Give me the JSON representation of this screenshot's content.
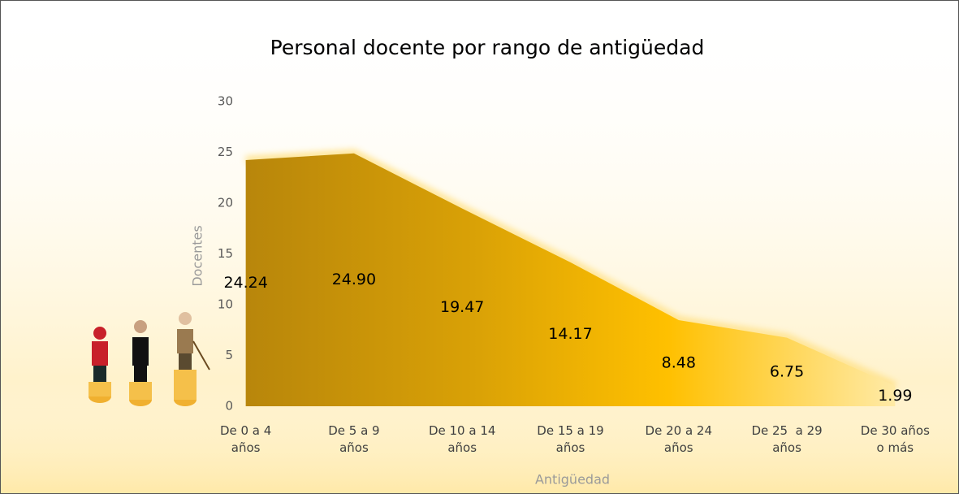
{
  "chart_data": {
    "type": "area",
    "title": "Personal docente por rango de antigüedad",
    "x_label": "Antigüedad",
    "y_label": "Docentes",
    "categories": [
      "De 0 a 4\naños",
      "De 5 a 9\naños",
      "De 10 a 14\naños",
      "De 15 a 19\naños",
      "De 20 a 24\naños",
      "De 25  a 29\naños",
      "De 30 años\no más"
    ],
    "values": [
      24.24,
      24.9,
      19.47,
      14.17,
      8.48,
      6.75,
      1.99
    ],
    "value_labels": [
      "24.24",
      "24.90",
      "19.47",
      "14.17",
      "8.48",
      "6.75",
      "1.99"
    ],
    "color": "#ffc000",
    "ylim": [
      0,
      30
    ],
    "yticks": [
      0,
      5,
      10,
      15,
      20,
      25,
      30
    ],
    "grid": false
  }
}
